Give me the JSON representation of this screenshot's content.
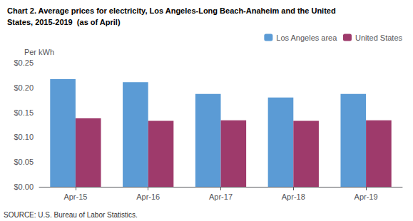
{
  "chart_data": {
    "type": "bar",
    "title": "Chart 2. Average prices for electricity, Los Angeles-Long Beach-Anaheim and the United",
    "subtitle": "States, 2015-2019  (as of April)",
    "ylabel": "Per kWh",
    "annotations": [
      "SOURCE: U.S. Bureau of Labor Statistics."
    ],
    "categories": [
      "Apr-15",
      "Apr-16",
      "Apr-17",
      "Apr-18",
      "Apr-19"
    ],
    "series": [
      {
        "name": "Los Angeles area",
        "color": "#5B9BD5",
        "values": [
          0.217,
          0.211,
          0.187,
          0.18,
          0.187
        ]
      },
      {
        "name": "United States",
        "color": "#9E3A6B",
        "values": [
          0.138,
          0.133,
          0.134,
          0.133,
          0.134
        ]
      }
    ],
    "ylim": [
      0,
      0.25
    ],
    "yticks": [
      {
        "value": 0.0,
        "label": "$0.00"
      },
      {
        "value": 0.05,
        "label": "$0.05"
      },
      {
        "value": 0.1,
        "label": "$0.10"
      },
      {
        "value": 0.15,
        "label": "$0.15"
      },
      {
        "value": 0.2,
        "label": "$0.20"
      },
      {
        "value": 0.25,
        "label": "$0.25"
      }
    ],
    "grid": false,
    "legend": "upper right"
  }
}
